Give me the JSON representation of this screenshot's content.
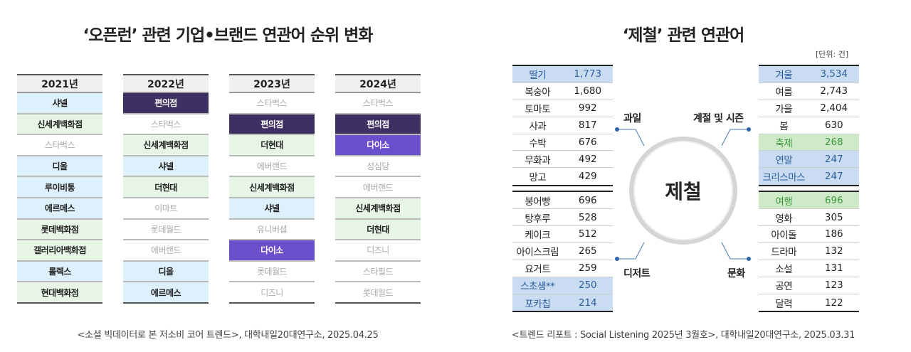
{
  "left": {
    "title": "‘오픈런’ 관련 기업•브랜드 연관어 순위 변화",
    "caption": "<소셜 빅데이터로 본 저소비 코어 트렌드>, 대학내일20대연구소, 2025.04.25",
    "columns": [
      {
        "year": "2021년",
        "rows": [
          {
            "label": "샤넬",
            "style": "blue"
          },
          {
            "label": "신세계백화점",
            "style": "green"
          },
          {
            "label": "스타벅스",
            "style": "plain"
          },
          {
            "label": "디올",
            "style": "blue"
          },
          {
            "label": "루이비통",
            "style": "blue"
          },
          {
            "label": "에르메스",
            "style": "blue"
          },
          {
            "label": "롯데백화점",
            "style": "green"
          },
          {
            "label": "갤러리아백화점",
            "style": "green"
          },
          {
            "label": "롤렉스",
            "style": "blue"
          },
          {
            "label": "현대백화점",
            "style": "green"
          }
        ]
      },
      {
        "year": "2022년",
        "rows": [
          {
            "label": "편의점",
            "style": "dark"
          },
          {
            "label": "스타벅스",
            "style": "plain"
          },
          {
            "label": "신세계백화점",
            "style": "green"
          },
          {
            "label": "샤넬",
            "style": "blue"
          },
          {
            "label": "더현대",
            "style": "green"
          },
          {
            "label": "이마트",
            "style": "plain"
          },
          {
            "label": "롯데월드",
            "style": "plain"
          },
          {
            "label": "에버랜드",
            "style": "plain"
          },
          {
            "label": "디올",
            "style": "blue"
          },
          {
            "label": "에르메스",
            "style": "blue"
          }
        ]
      },
      {
        "year": "2023년",
        "rows": [
          {
            "label": "스타벅스",
            "style": "plain"
          },
          {
            "label": "편의점",
            "style": "dark"
          },
          {
            "label": "더현대",
            "style": "green"
          },
          {
            "label": "에버랜드",
            "style": "plain"
          },
          {
            "label": "신세계백화점",
            "style": "green"
          },
          {
            "label": "샤넬",
            "style": "blue"
          },
          {
            "label": "유니버셜",
            "style": "plain"
          },
          {
            "label": "다이소",
            "style": "violet"
          },
          {
            "label": "롯데월드",
            "style": "plain"
          },
          {
            "label": "디즈니",
            "style": "plain"
          }
        ]
      },
      {
        "year": "2024년",
        "rows": [
          {
            "label": "스타벅스",
            "style": "plain"
          },
          {
            "label": "편의점",
            "style": "dark"
          },
          {
            "label": "다이소",
            "style": "violet"
          },
          {
            "label": "성심당",
            "style": "plain"
          },
          {
            "label": "에버랜드",
            "style": "plain"
          },
          {
            "label": "신세계백화점",
            "style": "green"
          },
          {
            "label": "더현대",
            "style": "green"
          },
          {
            "label": "디즈니",
            "style": "plain"
          },
          {
            "label": "스타필드",
            "style": "plain"
          },
          {
            "label": "롯데월드",
            "style": "plain"
          }
        ]
      }
    ]
  },
  "right": {
    "title": "‘제철’ 관련 연관어",
    "unit": "[단위: 건]",
    "center": "제철",
    "caption": "<트렌드 리포트 : Social Listening 2025년 3월호>, 대학내일20대연구소, 2025.03.31",
    "categories": {
      "fruit": "과일",
      "season": "계절 및 시즌",
      "dessert": "디저트",
      "culture": "문화"
    },
    "fruit": [
      [
        "딸기",
        "1,773",
        "hb"
      ],
      [
        "복숭아",
        "1,680",
        ""
      ],
      [
        "토마토",
        "992",
        ""
      ],
      [
        "사과",
        "817",
        ""
      ],
      [
        "수박",
        "676",
        ""
      ],
      [
        "무화과",
        "492",
        ""
      ],
      [
        "망고",
        "429",
        ""
      ]
    ],
    "dessert": [
      [
        "붕어빵",
        "696",
        ""
      ],
      [
        "탕후루",
        "528",
        ""
      ],
      [
        "케이크",
        "512",
        ""
      ],
      [
        "아이스크림",
        "265",
        ""
      ],
      [
        "요거트",
        "259",
        ""
      ],
      [
        "스초생**",
        "250",
        "hb"
      ],
      [
        "포카칩",
        "214",
        "hb"
      ]
    ],
    "season": [
      [
        "겨울",
        "3,534",
        "hb"
      ],
      [
        "여름",
        "2,743",
        ""
      ],
      [
        "가을",
        "2,404",
        ""
      ],
      [
        "봄",
        "630",
        ""
      ],
      [
        "축제",
        "268",
        "hg"
      ],
      [
        "연말",
        "247",
        "hb"
      ],
      [
        "크리스마스",
        "247",
        "hb"
      ]
    ],
    "culture": [
      [
        "여행",
        "696",
        "hg"
      ],
      [
        "영화",
        "305",
        ""
      ],
      [
        "아이돌",
        "186",
        ""
      ],
      [
        "드라마",
        "132",
        ""
      ],
      [
        "소설",
        "131",
        ""
      ],
      [
        "공연",
        "123",
        ""
      ],
      [
        "달력",
        "122",
        ""
      ]
    ]
  }
}
